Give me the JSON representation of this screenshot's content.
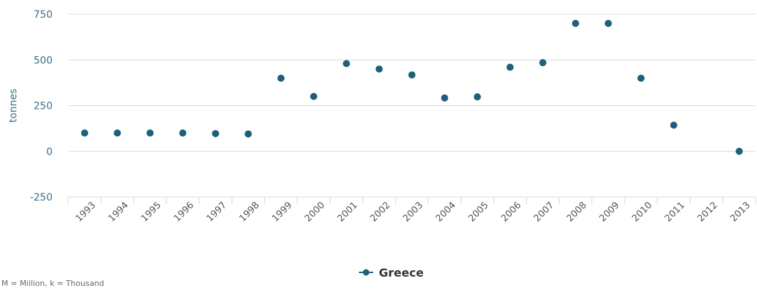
{
  "chart_data": {
    "type": "scatter",
    "title": "",
    "xlabel": "",
    "ylabel": "tonnes",
    "categories": [
      "1993",
      "1994",
      "1995",
      "1996",
      "1997",
      "1998",
      "1999",
      "2000",
      "2001",
      "2002",
      "2003",
      "2004",
      "2005",
      "2006",
      "2007",
      "2008",
      "2009",
      "2010",
      "2011",
      "2012",
      "2013"
    ],
    "series": [
      {
        "name": "Greece",
        "values": [
          100,
          100,
          100,
          100,
          97,
          95,
          400,
          300,
          480,
          450,
          418,
          292,
          298,
          460,
          485,
          700,
          700,
          400,
          143,
          null,
          0
        ]
      }
    ],
    "ylim": [
      -250,
      750
    ],
    "yticks": [
      -250,
      0,
      250,
      500,
      750
    ],
    "ytick_labels": [
      "-250",
      "0",
      "250",
      "500",
      "750"
    ],
    "grid": true,
    "legend_position": "bottom-center",
    "colors": {
      "series": "#1f5f7a",
      "axis_text": "#3a6f87",
      "grid": "#d8d8d8",
      "tick_label": "#555555"
    }
  },
  "footnote": "M = Million, k = Thousand"
}
